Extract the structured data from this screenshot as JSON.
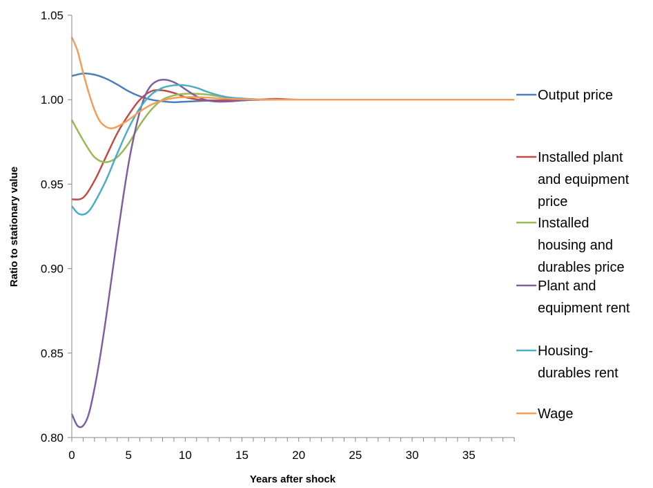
{
  "chart_data": {
    "type": "line",
    "title": "",
    "xlabel": "Years after shock",
    "ylabel": "Ratio to stationary value",
    "xlim": [
      0,
      39
    ],
    "ylim": [
      0.8,
      1.05
    ],
    "x_ticks": [
      "0",
      "5",
      "10",
      "15",
      "20",
      "25",
      "30",
      "35"
    ],
    "y_ticks": [
      "0.80",
      "0.85",
      "0.90",
      "0.95",
      "1.00",
      "1.05"
    ],
    "grid": false,
    "legend_position": "right",
    "series": [
      {
        "name": "Output price",
        "color": "#4a7ebb",
        "legend_lines": [
          "Output price"
        ],
        "x": [
          0,
          1,
          2,
          3,
          4,
          5,
          6,
          7,
          8,
          9,
          10,
          12,
          14,
          16,
          18,
          20,
          25,
          30,
          35,
          39
        ],
        "y": [
          1.014,
          1.0155,
          1.0148,
          1.0125,
          1.009,
          1.005,
          1.002,
          1.0,
          0.999,
          0.9985,
          0.9988,
          0.9994,
          0.9998,
          1.0,
          1.0,
          1.0,
          1.0,
          1.0,
          1.0,
          1.0
        ]
      },
      {
        "name": "Installed plant and equipment price",
        "color": "#be4b48",
        "legend_lines": [
          "Installed plant",
          "and equipment",
          "price"
        ],
        "x": [
          0,
          1,
          2,
          3,
          4,
          5,
          6,
          7,
          8,
          9,
          10,
          11,
          12,
          13,
          14,
          16,
          18,
          20,
          25,
          30,
          35,
          39
        ],
        "y": [
          0.941,
          0.942,
          0.952,
          0.966,
          0.98,
          0.991,
          1.0,
          1.005,
          1.0055,
          1.004,
          1.0015,
          1.0002,
          0.9996,
          0.9995,
          0.9997,
          1.0,
          1.0005,
          1.0,
          1.0,
          1.0,
          1.0,
          1.0
        ]
      },
      {
        "name": "Installed housing and durables price",
        "color": "#98b954",
        "legend_lines": [
          "Installed",
          "housing and",
          "durables price"
        ],
        "x": [
          0,
          1,
          2,
          3,
          4,
          5,
          6,
          7,
          8,
          9,
          10,
          11,
          12,
          13,
          14,
          16,
          18,
          20,
          25,
          30,
          35,
          39
        ],
        "y": [
          0.988,
          0.976,
          0.966,
          0.963,
          0.966,
          0.974,
          0.985,
          0.994,
          1.0,
          1.0025,
          1.0035,
          1.0035,
          1.003,
          1.002,
          1.0012,
          1.0003,
          1.0,
          1.0,
          1.0,
          1.0,
          1.0,
          1.0
        ]
      },
      {
        "name": "Plant and equipment rent",
        "color": "#7d5fa0",
        "legend_lines": [
          "Plant and",
          "equipment rent"
        ],
        "x": [
          0,
          0.5,
          1,
          1.5,
          2,
          2.5,
          3,
          3.5,
          4,
          4.5,
          5,
          5.5,
          6,
          6.5,
          7,
          7.5,
          8,
          8.5,
          9,
          9.5,
          10,
          11,
          12,
          13,
          14,
          15,
          16,
          18,
          20,
          25,
          30,
          35,
          39
        ],
        "y": [
          0.814,
          0.807,
          0.807,
          0.814,
          0.829,
          0.848,
          0.87,
          0.894,
          0.918,
          0.941,
          0.962,
          0.979,
          0.993,
          1.003,
          1.0085,
          1.011,
          1.0118,
          1.0115,
          1.0103,
          1.0085,
          1.0062,
          1.002,
          0.9995,
          0.9988,
          0.999,
          0.9995,
          0.9999,
          1.0,
          1.0,
          1.0,
          1.0,
          1.0,
          1.0
        ]
      },
      {
        "name": "Housing-durables rent",
        "color": "#4bacc6",
        "legend_lines": [
          "Housing-",
          "durables rent"
        ],
        "x": [
          0,
          0.5,
          1,
          1.5,
          2,
          3,
          4,
          5,
          6,
          7,
          8,
          9,
          10,
          11,
          12,
          13,
          14,
          16,
          18,
          20,
          25,
          30,
          35,
          39
        ],
        "y": [
          0.937,
          0.933,
          0.932,
          0.934,
          0.939,
          0.952,
          0.968,
          0.983,
          0.995,
          1.003,
          1.007,
          1.0085,
          1.0085,
          1.007,
          1.0045,
          1.0025,
          1.0012,
          1.0003,
          1.0,
          1.0,
          1.0,
          1.0,
          1.0,
          1.0
        ]
      },
      {
        "name": "Wage",
        "color": "#f59d56",
        "legend_lines": [
          "Wage"
        ],
        "x": [
          0,
          0.5,
          1,
          1.5,
          2,
          2.5,
          3,
          3.5,
          4,
          5,
          6,
          7,
          8,
          9,
          10,
          11,
          12,
          14,
          16,
          18,
          20,
          25,
          30,
          35,
          39
        ],
        "y": [
          1.037,
          1.029,
          1.016,
          1.004,
          0.994,
          0.987,
          0.984,
          0.983,
          0.984,
          0.988,
          0.993,
          0.997,
          0.9995,
          1.001,
          1.0015,
          1.0015,
          1.0012,
          1.0005,
          1.0002,
          1.0,
          1.0,
          1.0,
          1.0,
          1.0,
          1.0
        ]
      }
    ]
  }
}
